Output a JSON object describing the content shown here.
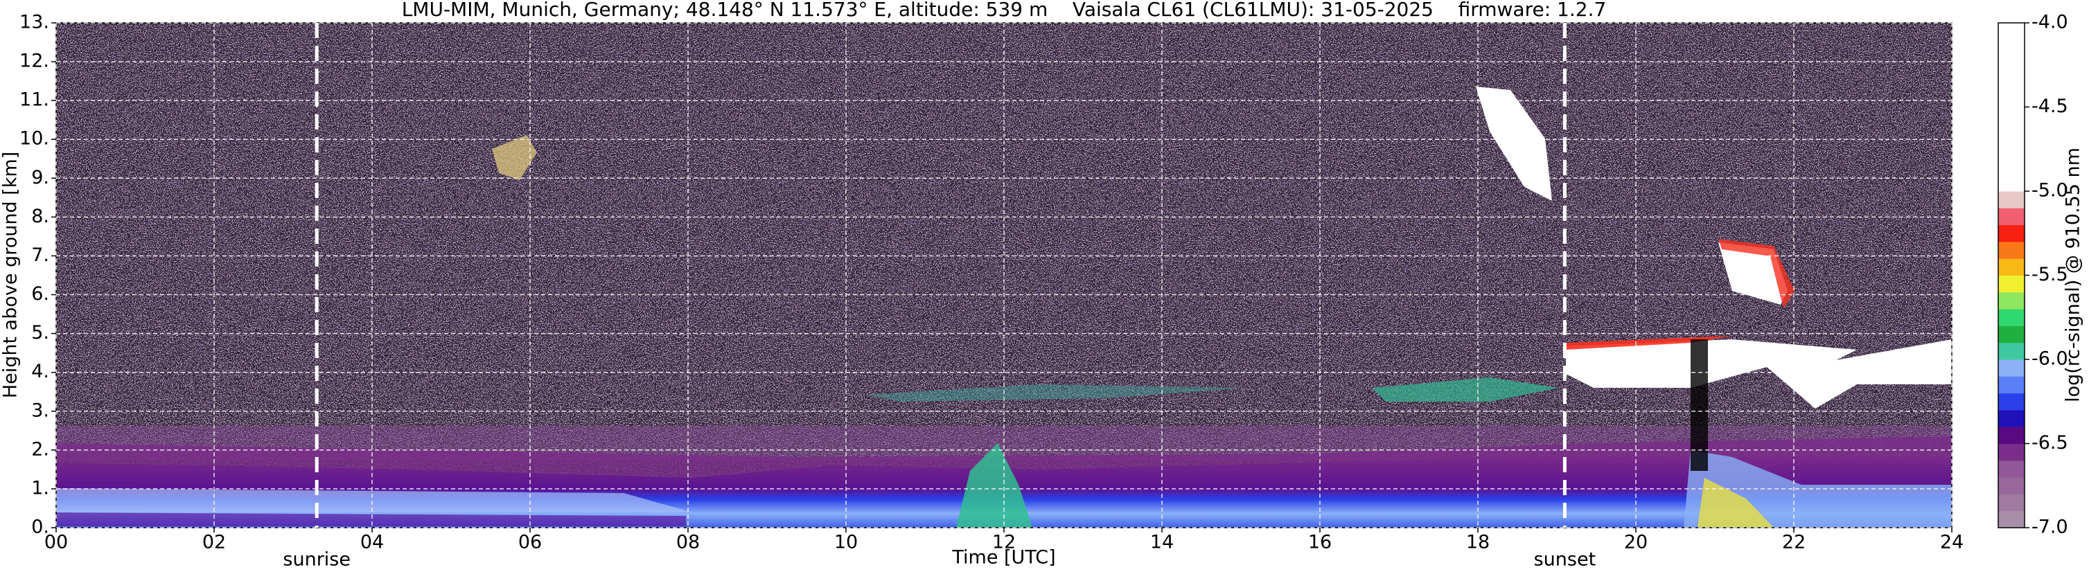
{
  "chart_data": {
    "type": "heatmap",
    "title": "LMU-MIM, Munich, Germany; 48.148° N 11.573° E, altitude: 539 m    Vaisala CL61 (CL61LMU): 31-05-2025    firmware: 1.2.7",
    "xlabel": "Time [UTC]",
    "ylabel": "Height above ground [km]",
    "xlim": [
      0,
      24
    ],
    "xticks": [
      {
        "value": 0,
        "label": "00"
      },
      {
        "value": 2,
        "label": "02"
      },
      {
        "value": 4,
        "label": "04"
      },
      {
        "value": 6,
        "label": "06"
      },
      {
        "value": 8,
        "label": "08"
      },
      10,
      12,
      14,
      16,
      18,
      20,
      22,
      24
    ],
    "ylim": [
      0,
      13
    ],
    "yticks": [
      {
        "value": 0,
        "label": "0."
      },
      {
        "value": 1,
        "label": "1."
      },
      {
        "value": 2,
        "label": "2."
      },
      {
        "value": 3,
        "label": "3."
      },
      {
        "value": 4,
        "label": "4."
      },
      {
        "value": 5,
        "label": "5."
      },
      {
        "value": 6,
        "label": "6."
      },
      {
        "value": 7,
        "label": "7."
      },
      {
        "value": 8,
        "label": "8."
      },
      {
        "value": 9,
        "label": "9."
      },
      {
        "value": 10,
        "label": "10."
      },
      {
        "value": 11,
        "label": "11."
      },
      {
        "value": 12,
        "label": "12."
      },
      {
        "value": 13,
        "label": "13."
      }
    ],
    "grid": true,
    "grid_color": "#ffffff",
    "annotations": [
      {
        "text": "sunrise",
        "x": 3.3
      },
      {
        "text": "sunset",
        "x": 19.1
      }
    ],
    "annotation_line_color": "#ffffff",
    "colorbar": {
      "label": "log(rc-signal) @ 910.55 nm",
      "clim": [
        -7,
        -4
      ],
      "ticks": [
        {
          "value": -7,
          "label": "-7.0"
        },
        -6.5,
        {
          "value": -6,
          "label": "-6.0"
        },
        -5.5,
        {
          "value": -5,
          "label": "-5.0"
        },
        -4.5,
        {
          "value": -4,
          "label": "-4.0"
        }
      ],
      "colors": [
        "#a98ea8",
        "#a07aa2",
        "#98689a",
        "#905898",
        "#7a2e8a",
        "#5a0a80",
        "#2010b8",
        "#2a40e8",
        "#5a80f8",
        "#8ab0f8",
        "#40c8a0",
        "#20b040",
        "#30d870",
        "#90e860",
        "#f0f030",
        "#f8b818",
        "#f87818",
        "#f82010",
        "#f06070",
        "#e8c8c8",
        "#ffffff",
        "#ffffff",
        "#ffffff",
        "#ffffff",
        "#ffffff",
        "#ffffff",
        "#ffffff",
        "#ffffff",
        "#ffffff",
        "#ffffff"
      ]
    }
  }
}
